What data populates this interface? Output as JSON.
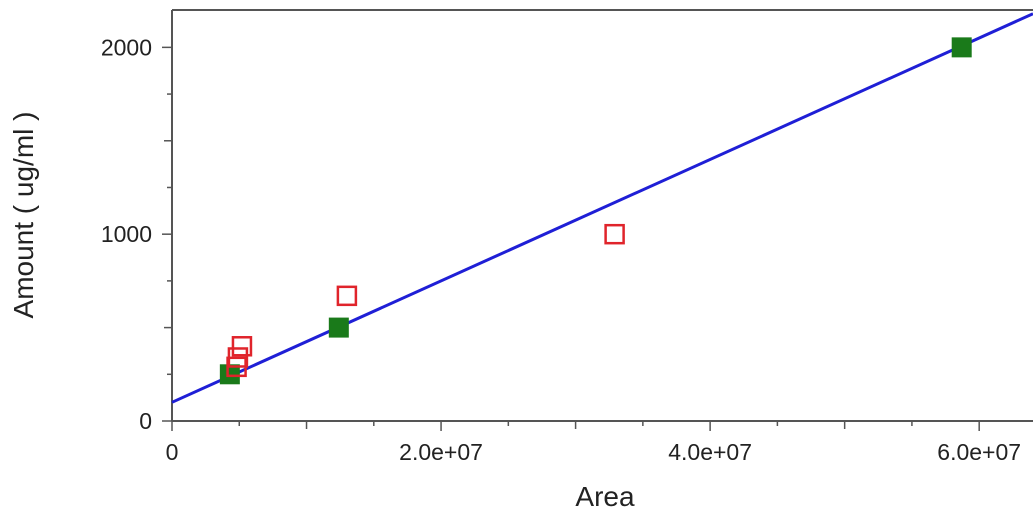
{
  "chart_data": {
    "type": "scatter",
    "title": "",
    "xlabel": "Area",
    "ylabel": "Amount ( ug/ml )",
    "xlim": [
      0,
      64000000
    ],
    "ylim": [
      0,
      2200
    ],
    "x_ticks": [
      0,
      20000000,
      40000000,
      60000000
    ],
    "x_tick_labels": [
      "0",
      "2.0e+07",
      "4.0e+07",
      "6.0e+07"
    ],
    "y_ticks": [
      0,
      1000,
      2000
    ],
    "y_tick_labels": [
      "0",
      "1000",
      "2000"
    ],
    "grid": false,
    "series": [
      {
        "marker": "filled-square",
        "color": "#1a7a1a",
        "points": [
          {
            "x": 4300000,
            "y": 250
          },
          {
            "x": 12400000,
            "y": 500
          },
          {
            "x": 58700000,
            "y": 2000
          }
        ]
      },
      {
        "marker": "open-square",
        "color": "#e0242b",
        "points": [
          {
            "x": 4800000,
            "y": 290
          },
          {
            "x": 4900000,
            "y": 340
          },
          {
            "x": 5200000,
            "y": 400
          },
          {
            "x": 13000000,
            "y": 670
          },
          {
            "x": 32900000,
            "y": 1000
          }
        ]
      }
    ],
    "fit_line": {
      "color": "#1f1fd6",
      "x": [
        0,
        64000000
      ],
      "y": [
        100,
        2180
      ]
    }
  }
}
